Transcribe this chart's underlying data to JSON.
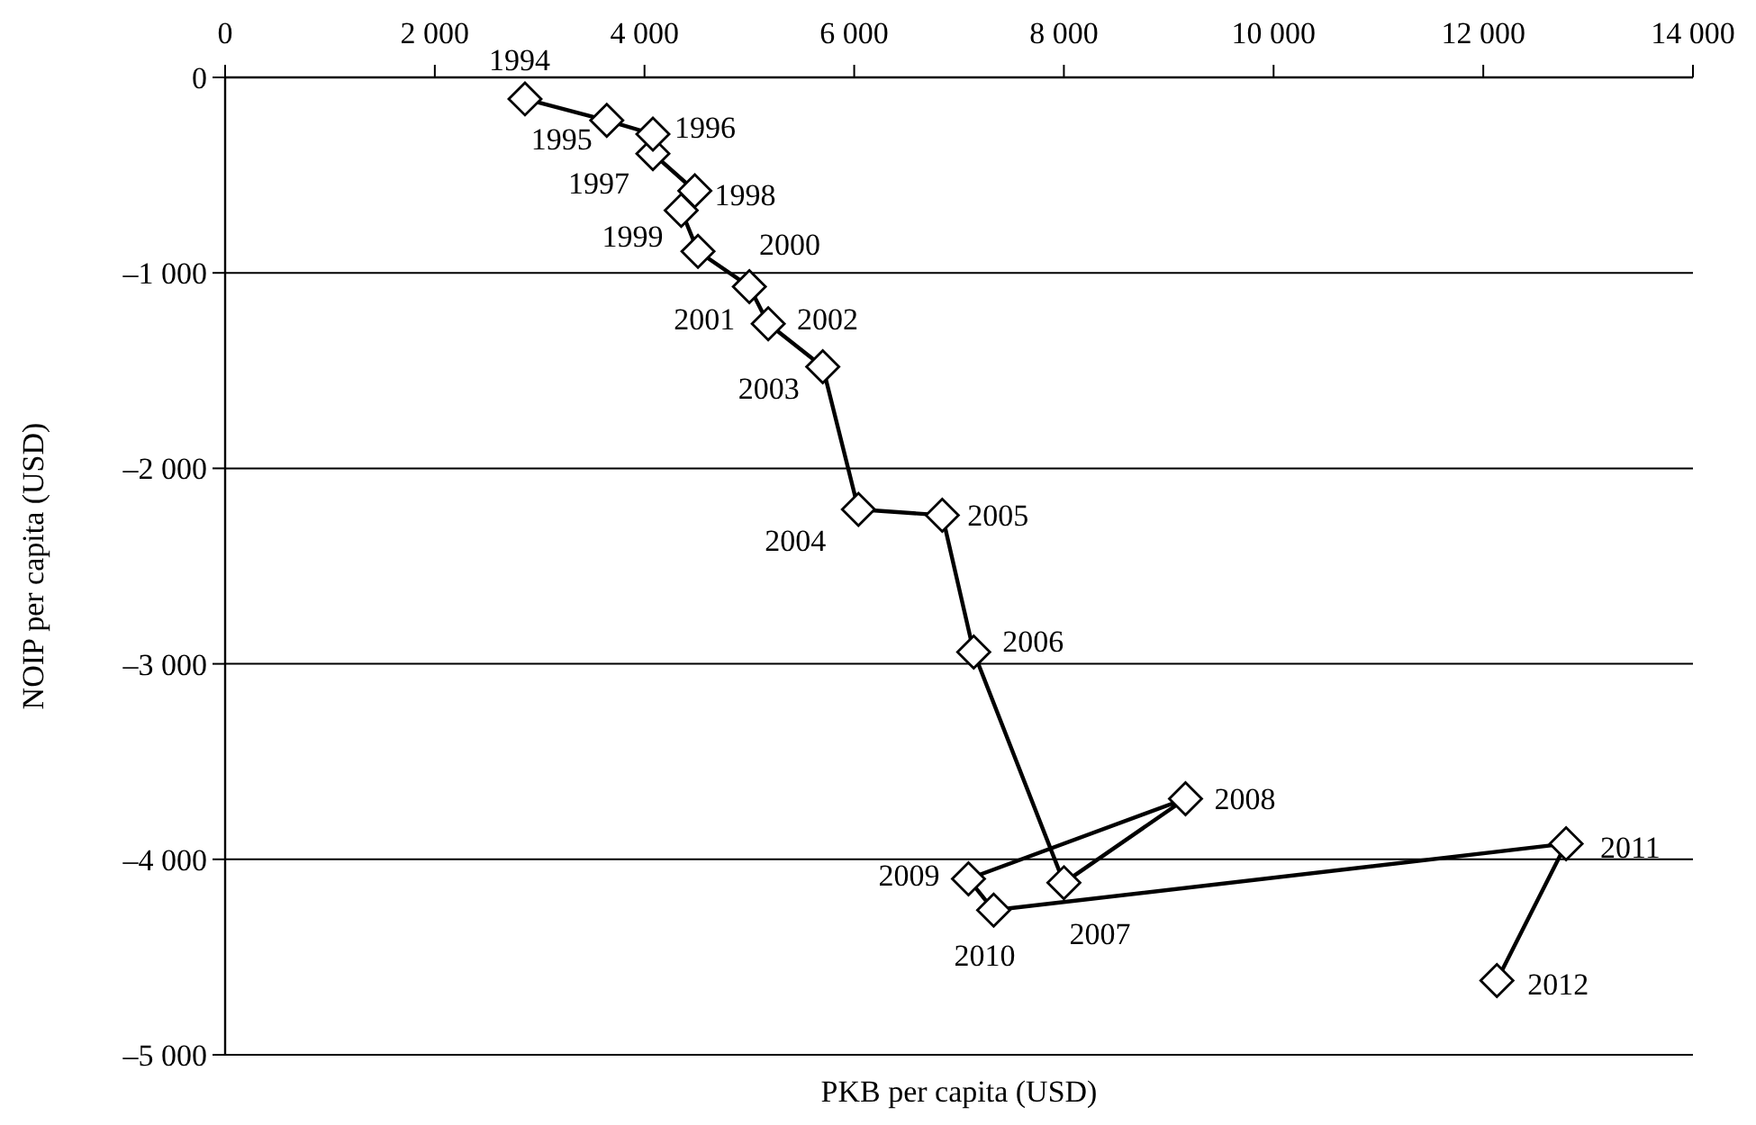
{
  "chart_data": {
    "type": "line",
    "xlabel": "PKB per capita (USD)",
    "ylabel": "NOIP per capita (USD)",
    "xlim": [
      0,
      14000
    ],
    "ylim": [
      -5000,
      0
    ],
    "xticks": [
      0,
      {
        "value": 2000,
        "label": "2 000"
      },
      {
        "value": 4000,
        "label": "4 000"
      },
      {
        "value": 6000,
        "label": "6 000"
      },
      {
        "value": 8000,
        "label": "8 000"
      },
      {
        "value": 10000,
        "label": "10 000"
      },
      {
        "value": 12000,
        "label": "12 000"
      },
      {
        "value": 14000,
        "label": "14 000"
      }
    ],
    "yticks": [
      0,
      {
        "value": -1000,
        "label": "–1 000"
      },
      {
        "value": -2000,
        "label": "–2 000"
      },
      {
        "value": -3000,
        "label": "–3 000"
      },
      {
        "value": -4000,
        "label": "–4 000"
      },
      {
        "value": -5000,
        "label": "–5 000"
      }
    ],
    "grid": "y",
    "marker": "diamond",
    "line_style": "solid",
    "series": [
      {
        "color": "#000000",
        "x": [
          2860,
          3640,
          4080,
          4080,
          4480,
          4350,
          4510,
          5000,
          5180,
          5700,
          6040,
          6840,
          7140,
          8000,
          9160,
          7090,
          7330,
          12790,
          12130
        ],
        "values": [
          -110,
          -220,
          -290,
          -390,
          -580,
          -680,
          -890,
          -1070,
          -1260,
          -1480,
          -2210,
          -2240,
          -2940,
          -4120,
          -3690,
          -4100,
          -4260,
          -3920,
          -4620
        ]
      }
    ],
    "annotations": [
      {
        "text": "1994",
        "x": 2860,
        "y": -110
      },
      {
        "text": "1995",
        "x": 3640,
        "y": -220
      },
      {
        "text": "1996",
        "x": 4080,
        "y": -290
      },
      {
        "text": "1997",
        "x": 4080,
        "y": -390
      },
      {
        "text": "1998",
        "x": 4480,
        "y": -580
      },
      {
        "text": "1999",
        "x": 4350,
        "y": -680
      },
      {
        "text": "2000",
        "x": 4510,
        "y": -890
      },
      {
        "text": "2001",
        "x": 5000,
        "y": -1070
      },
      {
        "text": "2002",
        "x": 5180,
        "y": -1260
      },
      {
        "text": "2003",
        "x": 5700,
        "y": -1480
      },
      {
        "text": "2004",
        "x": 6040,
        "y": -2210
      },
      {
        "text": "2005",
        "x": 6840,
        "y": -2240
      },
      {
        "text": "2006",
        "x": 7140,
        "y": -2940
      },
      {
        "text": "2007",
        "x": 8000,
        "y": -4120
      },
      {
        "text": "2008",
        "x": 9160,
        "y": -3690
      },
      {
        "text": "2009",
        "x": 7090,
        "y": -4100
      },
      {
        "text": "2010",
        "x": 7330,
        "y": -4260
      },
      {
        "text": "2011",
        "x": 12790,
        "y": -3920
      },
      {
        "text": "2012",
        "x": 12130,
        "y": -4620
      }
    ]
  }
}
